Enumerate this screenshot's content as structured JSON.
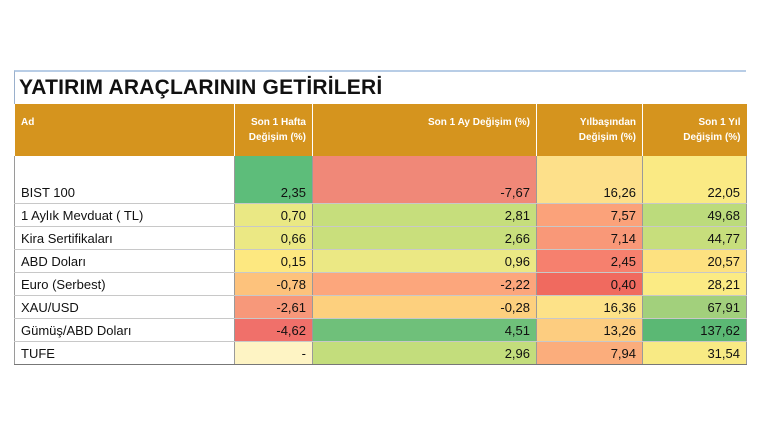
{
  "table": {
    "title": "YATIRIM ARAÇLARININ GETİRİLERİ",
    "headers": [
      {
        "line1": "Ad",
        "line2": ""
      },
      {
        "line1": "Son 1 Hafta",
        "line2": "Değişim (%)"
      },
      {
        "line1": "Son 1 Ay Değişim (%)",
        "line2": ""
      },
      {
        "line1": "Yılbaşından",
        "line2": "Değişim (%)"
      },
      {
        "line1": "Son 1 Yıl",
        "line2": "Değişim (%)"
      }
    ],
    "rows": [
      {
        "name": "BIST 100",
        "values": [
          "2,35",
          "-7,67",
          "16,26",
          "22,05"
        ],
        "colors": [
          "#5dbd7a",
          "#f08878",
          "#fde08a",
          "#faea84"
        ]
      },
      {
        "name": "1 Aylık Mevduat ( TL)",
        "values": [
          "0,70",
          "2,81",
          "7,57",
          "49,68"
        ],
        "colors": [
          "#eae884",
          "#c6de7c",
          "#fba27a",
          "#bcdb7c"
        ]
      },
      {
        "name": "Kira Sertifikaları",
        "values": [
          "0,66",
          "2,66",
          "7,14",
          "44,77"
        ],
        "colors": [
          "#ebe884",
          "#c9df7c",
          "#f99878",
          "#c7de7c"
        ]
      },
      {
        "name": "ABD Doları",
        "values": [
          "0,15",
          "0,96",
          "2,45",
          "20,57"
        ],
        "colors": [
          "#fde880",
          "#ebe884",
          "#f6806e",
          "#fde180"
        ]
      },
      {
        "name": "Euro (Serbest)",
        "values": [
          "-0,78",
          "-2,22",
          "0,40",
          "28,21"
        ],
        "colors": [
          "#fdc27c",
          "#fca67c",
          "#f06a5f",
          "#fbeb84"
        ]
      },
      {
        "name": "XAU/USD",
        "values": [
          "-2,61",
          "-0,28",
          "16,36",
          "67,91"
        ],
        "colors": [
          "#f7987a",
          "#fdd07e",
          "#fde288",
          "#a2d07c"
        ]
      },
      {
        "name": "Gümüş/ABD Doları",
        "values": [
          "-4,62",
          "4,51",
          "13,26",
          "137,62"
        ],
        "colors": [
          "#f0706a",
          "#6fc07a",
          "#fdcd80",
          "#5bb874"
        ]
      },
      {
        "name": "TUFE",
        "values": [
          "-",
          "2,96",
          "7,94",
          "31,54"
        ],
        "colors": [
          "#fef4c4",
          "#c3dd7c",
          "#fbad7c",
          "#f8ea84"
        ]
      }
    ]
  }
}
